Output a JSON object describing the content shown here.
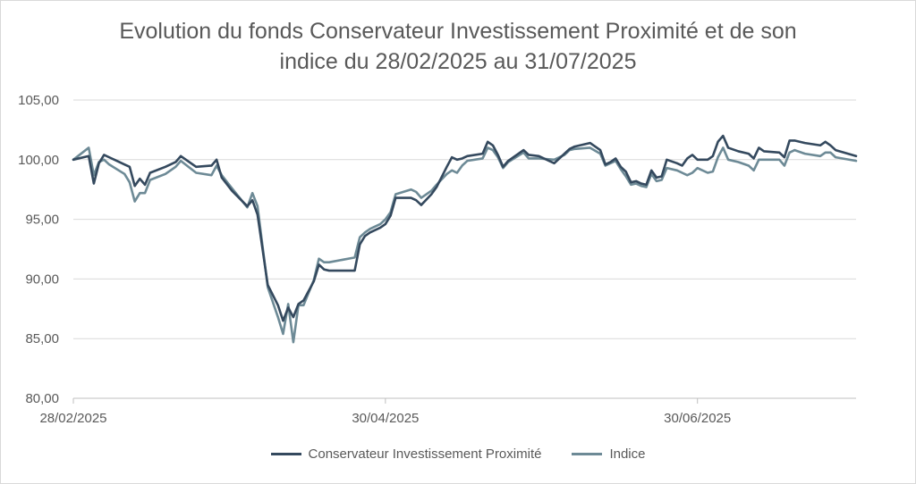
{
  "chart_data": {
    "type": "line",
    "title_lines": [
      "Evolution du fonds Conservateur Investissement Proximité et de son",
      "indice du 28/02/2025 au 31/07/2025"
    ],
    "ylim": [
      80,
      105
    ],
    "y_ticks": [
      "80,00",
      "85,00",
      "90,00",
      "95,00",
      "100,00",
      "105,00"
    ],
    "x_ticks": [
      {
        "date": "2025-02-28",
        "label": "28/02/2025"
      },
      {
        "date": "2025-04-30",
        "label": "30/04/2025"
      },
      {
        "date": "2025-06-30",
        "label": "30/06/2025"
      }
    ],
    "xlim": [
      "2025-02-28",
      "2025-07-31"
    ],
    "grid": true,
    "legend_position": "bottom",
    "series": [
      {
        "name": "Conservateur Investissement Proximité",
        "color": "#34495e",
        "points": [
          [
            "2025-02-28",
            100.0
          ],
          [
            "2025-03-03",
            100.3
          ],
          [
            "2025-03-04",
            98.0
          ],
          [
            "2025-03-05",
            99.7
          ],
          [
            "2025-03-06",
            100.4
          ],
          [
            "2025-03-07",
            100.2
          ],
          [
            "2025-03-10",
            99.6
          ],
          [
            "2025-03-11",
            99.4
          ],
          [
            "2025-03-12",
            97.8
          ],
          [
            "2025-03-13",
            98.4
          ],
          [
            "2025-03-14",
            97.9
          ],
          [
            "2025-03-15",
            98.9
          ],
          [
            "2025-03-18",
            99.4
          ],
          [
            "2025-03-20",
            99.8
          ],
          [
            "2025-03-21",
            100.3
          ],
          [
            "2025-03-24",
            99.4
          ],
          [
            "2025-03-27",
            99.5
          ],
          [
            "2025-03-28",
            100.0
          ],
          [
            "2025-03-29",
            98.5
          ],
          [
            "2025-03-31",
            97.4
          ],
          [
            "2025-04-03",
            96.1
          ],
          [
            "2025-04-04",
            96.6
          ],
          [
            "2025-04-05",
            95.4
          ],
          [
            "2025-04-07",
            89.5
          ],
          [
            "2025-04-09",
            87.8
          ],
          [
            "2025-04-10",
            86.5
          ],
          [
            "2025-04-11",
            87.6
          ],
          [
            "2025-04-12",
            86.8
          ],
          [
            "2025-04-13",
            87.9
          ],
          [
            "2025-04-14",
            88.2
          ],
          [
            "2025-04-16",
            89.8
          ],
          [
            "2025-04-17",
            91.2
          ],
          [
            "2025-04-18",
            90.8
          ],
          [
            "2025-04-19",
            90.7
          ],
          [
            "2025-04-24",
            90.7
          ],
          [
            "2025-04-25",
            92.9
          ],
          [
            "2025-04-26",
            93.6
          ],
          [
            "2025-04-27",
            93.9
          ],
          [
            "2025-04-29",
            94.3
          ],
          [
            "2025-04-30",
            94.6
          ],
          [
            "2025-05-01",
            95.3
          ],
          [
            "2025-05-02",
            96.8
          ],
          [
            "2025-05-05",
            96.8
          ],
          [
            "2025-05-06",
            96.6
          ],
          [
            "2025-05-07",
            96.2
          ],
          [
            "2025-05-09",
            97.1
          ],
          [
            "2025-05-10",
            97.7
          ],
          [
            "2025-05-12",
            99.4
          ],
          [
            "2025-05-13",
            100.2
          ],
          [
            "2025-05-14",
            100.0
          ],
          [
            "2025-05-15",
            100.1
          ],
          [
            "2025-05-16",
            100.3
          ],
          [
            "2025-05-19",
            100.5
          ],
          [
            "2025-05-20",
            101.5
          ],
          [
            "2025-05-21",
            101.2
          ],
          [
            "2025-05-22",
            100.4
          ],
          [
            "2025-05-23",
            99.4
          ],
          [
            "2025-05-24",
            99.9
          ],
          [
            "2025-05-27",
            100.8
          ],
          [
            "2025-05-28",
            100.4
          ],
          [
            "2025-05-30",
            100.3
          ],
          [
            "2025-06-02",
            99.7
          ],
          [
            "2025-06-04",
            100.5
          ],
          [
            "2025-06-05",
            100.9
          ],
          [
            "2025-06-06",
            101.1
          ],
          [
            "2025-06-09",
            101.4
          ],
          [
            "2025-06-11",
            100.8
          ],
          [
            "2025-06-12",
            99.6
          ],
          [
            "2025-06-13",
            99.8
          ],
          [
            "2025-06-14",
            100.1
          ],
          [
            "2025-06-15",
            99.4
          ],
          [
            "2025-06-16",
            99.0
          ],
          [
            "2025-06-17",
            98.1
          ],
          [
            "2025-06-18",
            98.2
          ],
          [
            "2025-06-19",
            98.0
          ],
          [
            "2025-06-20",
            97.9
          ],
          [
            "2025-06-21",
            99.1
          ],
          [
            "2025-06-22",
            98.5
          ],
          [
            "2025-06-23",
            98.6
          ],
          [
            "2025-06-24",
            100.0
          ],
          [
            "2025-06-26",
            99.7
          ],
          [
            "2025-06-27",
            99.5
          ],
          [
            "2025-06-28",
            100.1
          ],
          [
            "2025-06-29",
            100.4
          ],
          [
            "2025-06-30",
            100.0
          ],
          [
            "2025-07-02",
            100.0
          ],
          [
            "2025-07-03",
            100.3
          ],
          [
            "2025-07-04",
            101.5
          ],
          [
            "2025-07-05",
            102.0
          ],
          [
            "2025-07-06",
            101.0
          ],
          [
            "2025-07-08",
            100.7
          ],
          [
            "2025-07-10",
            100.5
          ],
          [
            "2025-07-11",
            100.1
          ],
          [
            "2025-07-12",
            101.0
          ],
          [
            "2025-07-13",
            100.7
          ],
          [
            "2025-07-16",
            100.6
          ],
          [
            "2025-07-17",
            100.2
          ],
          [
            "2025-07-18",
            101.6
          ],
          [
            "2025-07-19",
            101.6
          ],
          [
            "2025-07-21",
            101.4
          ],
          [
            "2025-07-24",
            101.2
          ],
          [
            "2025-07-25",
            101.5
          ],
          [
            "2025-07-26",
            101.2
          ],
          [
            "2025-07-27",
            100.8
          ],
          [
            "2025-07-31",
            100.3
          ]
        ]
      },
      {
        "name": "Indice",
        "color": "#6d8a96",
        "points": [
          [
            "2025-02-28",
            100.0
          ],
          [
            "2025-03-03",
            101.0
          ],
          [
            "2025-03-04",
            98.7
          ],
          [
            "2025-03-05",
            99.8
          ],
          [
            "2025-03-06",
            100.0
          ],
          [
            "2025-03-07",
            99.6
          ],
          [
            "2025-03-10",
            98.8
          ],
          [
            "2025-03-11",
            98.1
          ],
          [
            "2025-03-12",
            96.5
          ],
          [
            "2025-03-13",
            97.2
          ],
          [
            "2025-03-14",
            97.2
          ],
          [
            "2025-03-15",
            98.3
          ],
          [
            "2025-03-18",
            98.8
          ],
          [
            "2025-03-20",
            99.4
          ],
          [
            "2025-03-21",
            99.9
          ],
          [
            "2025-03-24",
            98.9
          ],
          [
            "2025-03-27",
            98.7
          ],
          [
            "2025-03-28",
            99.5
          ],
          [
            "2025-03-29",
            98.7
          ],
          [
            "2025-03-31",
            97.6
          ],
          [
            "2025-04-03",
            96.0
          ],
          [
            "2025-04-04",
            97.2
          ],
          [
            "2025-04-05",
            96.1
          ],
          [
            "2025-04-07",
            89.3
          ],
          [
            "2025-04-09",
            86.8
          ],
          [
            "2025-04-10",
            85.4
          ],
          [
            "2025-04-11",
            87.9
          ],
          [
            "2025-04-12",
            84.7
          ],
          [
            "2025-04-13",
            87.8
          ],
          [
            "2025-04-14",
            87.8
          ],
          [
            "2025-04-16",
            89.9
          ],
          [
            "2025-04-17",
            91.7
          ],
          [
            "2025-04-18",
            91.4
          ],
          [
            "2025-04-19",
            91.4
          ],
          [
            "2025-04-24",
            91.8
          ],
          [
            "2025-04-25",
            93.5
          ],
          [
            "2025-04-26",
            93.9
          ],
          [
            "2025-04-27",
            94.2
          ],
          [
            "2025-04-29",
            94.6
          ],
          [
            "2025-04-30",
            95.0
          ],
          [
            "2025-05-01",
            95.6
          ],
          [
            "2025-05-02",
            97.1
          ],
          [
            "2025-05-05",
            97.5
          ],
          [
            "2025-05-06",
            97.3
          ],
          [
            "2025-05-07",
            96.8
          ],
          [
            "2025-05-09",
            97.4
          ],
          [
            "2025-05-10",
            97.9
          ],
          [
            "2025-05-12",
            98.8
          ],
          [
            "2025-05-13",
            99.1
          ],
          [
            "2025-05-14",
            98.9
          ],
          [
            "2025-05-15",
            99.5
          ],
          [
            "2025-05-16",
            99.9
          ],
          [
            "2025-05-19",
            100.1
          ],
          [
            "2025-05-20",
            101.0
          ],
          [
            "2025-05-21",
            100.8
          ],
          [
            "2025-05-22",
            100.2
          ],
          [
            "2025-05-23",
            99.3
          ],
          [
            "2025-05-24",
            99.8
          ],
          [
            "2025-05-27",
            100.6
          ],
          [
            "2025-05-28",
            100.1
          ],
          [
            "2025-05-30",
            100.1
          ],
          [
            "2025-06-02",
            100.0
          ],
          [
            "2025-06-04",
            100.4
          ],
          [
            "2025-06-05",
            100.8
          ],
          [
            "2025-06-06",
            100.9
          ],
          [
            "2025-06-09",
            101.0
          ],
          [
            "2025-06-11",
            100.5
          ],
          [
            "2025-06-12",
            99.5
          ],
          [
            "2025-06-13",
            99.7
          ],
          [
            "2025-06-14",
            99.9
          ],
          [
            "2025-06-15",
            99.2
          ],
          [
            "2025-06-16",
            98.6
          ],
          [
            "2025-06-17",
            97.9
          ],
          [
            "2025-06-18",
            98.0
          ],
          [
            "2025-06-19",
            97.8
          ],
          [
            "2025-06-20",
            97.7
          ],
          [
            "2025-06-21",
            98.8
          ],
          [
            "2025-06-22",
            98.2
          ],
          [
            "2025-06-23",
            98.3
          ],
          [
            "2025-06-24",
            99.3
          ],
          [
            "2025-06-26",
            99.1
          ],
          [
            "2025-06-27",
            98.9
          ],
          [
            "2025-06-28",
            98.7
          ],
          [
            "2025-06-29",
            98.9
          ],
          [
            "2025-06-30",
            99.3
          ],
          [
            "2025-07-02",
            98.9
          ],
          [
            "2025-07-03",
            99.0
          ],
          [
            "2025-07-04",
            100.2
          ],
          [
            "2025-07-05",
            101.0
          ],
          [
            "2025-07-06",
            100.0
          ],
          [
            "2025-07-08",
            99.8
          ],
          [
            "2025-07-10",
            99.5
          ],
          [
            "2025-07-11",
            99.1
          ],
          [
            "2025-07-12",
            100.0
          ],
          [
            "2025-07-13",
            100.0
          ],
          [
            "2025-07-16",
            100.0
          ],
          [
            "2025-07-17",
            99.5
          ],
          [
            "2025-07-18",
            100.6
          ],
          [
            "2025-07-19",
            100.8
          ],
          [
            "2025-07-21",
            100.5
          ],
          [
            "2025-07-24",
            100.3
          ],
          [
            "2025-07-25",
            100.6
          ],
          [
            "2025-07-26",
            100.6
          ],
          [
            "2025-07-27",
            100.2
          ],
          [
            "2025-07-31",
            99.9
          ]
        ]
      }
    ]
  }
}
